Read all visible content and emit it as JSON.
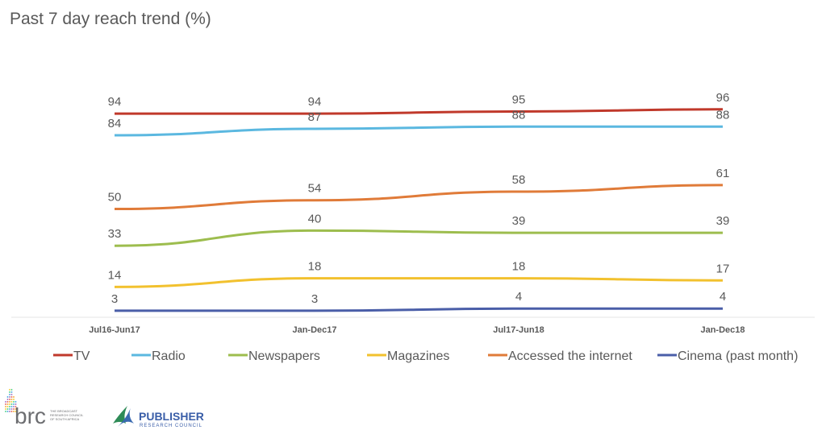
{
  "chart_data": {
    "type": "line",
    "title": "Past 7 day reach trend (%)",
    "categories": [
      "Jul16-Jun17",
      "Jan-Dec17",
      "Jul17-Jun18",
      "Jan-Dec18"
    ],
    "ylim": [
      0,
      100
    ],
    "grid": false,
    "legend_placement": "bottom",
    "series": [
      {
        "name": "TV",
        "color": "#c0392b",
        "values": [
          94,
          94,
          95,
          96
        ]
      },
      {
        "name": "Radio",
        "color": "#5bb8e0",
        "values": [
          84,
          87,
          88,
          88
        ]
      },
      {
        "name": "Newspapers",
        "color": "#9dbd4e",
        "values": [
          33,
          40,
          39,
          39
        ]
      },
      {
        "name": "Magazines",
        "color": "#f2c12e",
        "values": [
          14,
          18,
          18,
          17
        ]
      },
      {
        "name": "Accessed the internet",
        "color": "#e07b39",
        "values": [
          50,
          54,
          58,
          61
        ]
      },
      {
        "name": "Cinema (past month)",
        "color": "#4a5ea8",
        "values": [
          3,
          3,
          4,
          4
        ]
      }
    ]
  },
  "logos": {
    "brc": {
      "text": "brc",
      "subtext": "THE BROADCAST RESEARCH COUNCIL OF SOUTH AFRICA"
    },
    "prc": {
      "text": "PUBLISHER",
      "subtext": "RESEARCH COUNCIL"
    }
  }
}
